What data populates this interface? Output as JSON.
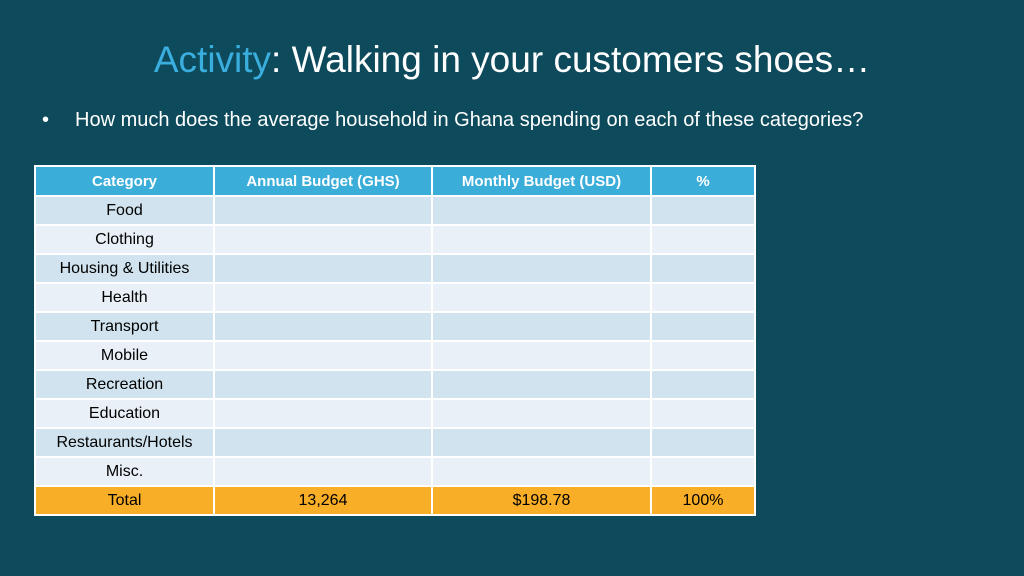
{
  "title": {
    "accent": "Activity",
    "rest": ": Walking in your customers shoes…"
  },
  "bullet": {
    "symbol": "•",
    "text": "How much does the average household in Ghana spending on each of these categories?"
  },
  "table": {
    "headers": [
      "Category",
      "Annual Budget (GHS)",
      "Monthly Budget (USD)",
      "%"
    ],
    "rows": [
      {
        "category": "Food",
        "annual": "",
        "monthly": "",
        "percent": ""
      },
      {
        "category": "Clothing",
        "annual": "",
        "monthly": "",
        "percent": ""
      },
      {
        "category": "Housing & Utilities",
        "annual": "",
        "monthly": "",
        "percent": ""
      },
      {
        "category": "Health",
        "annual": "",
        "monthly": "",
        "percent": ""
      },
      {
        "category": "Transport",
        "annual": "",
        "monthly": "",
        "percent": ""
      },
      {
        "category": "Mobile",
        "annual": "",
        "monthly": "",
        "percent": ""
      },
      {
        "category": "Recreation",
        "annual": "",
        "monthly": "",
        "percent": ""
      },
      {
        "category": "Education",
        "annual": "",
        "monthly": "",
        "percent": ""
      },
      {
        "category": "Restaurants/Hotels",
        "annual": "",
        "monthly": "",
        "percent": ""
      },
      {
        "category": "Misc.",
        "annual": "",
        "monthly": "",
        "percent": ""
      }
    ],
    "total": {
      "category": "Total",
      "annual": "13,264",
      "monthly": "$198.78",
      "percent": "100%"
    }
  },
  "colors": {
    "background": "#0d4a5b",
    "accent": "#3aaede",
    "header": "#3badd9",
    "row_odd": "#d0e3ee",
    "row_even": "#e9f0f7",
    "total": "#f9ae28"
  }
}
